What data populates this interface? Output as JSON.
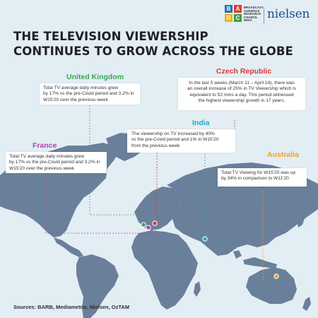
{
  "header": {
    "title_line1": "THE TELEVISION VIEWERSHIP",
    "title_line2": "CONTINUES TO GROW ACROSS THE GLOBE",
    "barc_letters": [
      "B",
      "A",
      "R",
      "C"
    ],
    "barc_text": [
      "BROADCAST",
      "AUDIENCE",
      "RESEARCH",
      "COUNCIL",
      "INDIA"
    ],
    "nielsen": "nielsen"
  },
  "regions": {
    "uk": {
      "name": "United Kingdom",
      "color": "#3aa655",
      "lines": [
        "Total TV average daily minutes grew",
        "by 17% vs the pre-Covid period and  3.2% in",
        "W15'20 over the previous week"
      ]
    },
    "czech": {
      "name": "Czech Republic",
      "color": "#d23a3a",
      "lines": [
        "In the last 5 weeks (March 11 – April 14), there was",
        "an overall increase of 25% in TV Viewership which is",
        "equivalent to 52 mins a day. This period witnessed",
        "the highest viewership growth in 17 years."
      ]
    },
    "india": {
      "name": "India",
      "color": "#2aa5c4",
      "lines": [
        "The viewership on TV increased by 40%",
        "vs the pre-Covid period and  1% in W15'20",
        "from the previous week"
      ]
    },
    "france": {
      "name": "France",
      "color": "#b53fb3",
      "lines": [
        "Total TV average daily minutes grew",
        "by 17% vs the pre-Covid period and  3.2% in",
        "W15'20 over the previous week"
      ]
    },
    "australia": {
      "name": "Australia",
      "color": "#f0a11f",
      "lines": [
        "Total TV Viewing for W15'20 was up",
        "by 34% in comparison to W11'20."
      ]
    }
  },
  "footer": {
    "sources": "Sources: BARB, Mediametrie, Nielsen, OzTAM"
  },
  "colors": {
    "background": "#e3edf4",
    "land": "#6a7f99",
    "barc_blue": "#2a6db5",
    "barc_red": "#e63b2e",
    "barc_yellow": "#f5b21a",
    "barc_green": "#39a04a",
    "nielsen_blue": "#1b4f8e"
  }
}
